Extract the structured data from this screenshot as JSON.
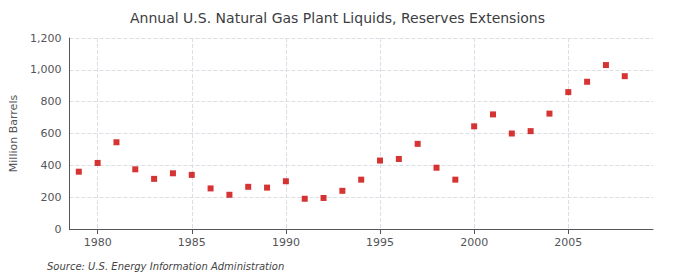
{
  "chart_data": {
    "type": "scatter",
    "title": "Annual U.S. Natural Gas Plant Liquids, Reserves Extensions",
    "ylabel": "Million Barrels",
    "source": "Source: U.S. Energy Information Administration",
    "x": [
      1979,
      1980,
      1981,
      1982,
      1983,
      1984,
      1985,
      1986,
      1987,
      1988,
      1989,
      1990,
      1991,
      1992,
      1993,
      1994,
      1995,
      1996,
      1997,
      1998,
      1999,
      2000,
      2001,
      2002,
      2003,
      2004,
      2005,
      2006,
      2007,
      2008
    ],
    "values": [
      360,
      415,
      545,
      375,
      315,
      350,
      340,
      255,
      215,
      265,
      260,
      300,
      190,
      195,
      240,
      310,
      430,
      440,
      535,
      385,
      310,
      645,
      720,
      600,
      615,
      725,
      860,
      925,
      1030,
      960
    ],
    "color": "#cc0000",
    "marker": "square",
    "xlim": [
      1978.5,
      2009.5
    ],
    "xticks": [
      1980,
      1985,
      1990,
      1995,
      2000,
      2005
    ],
    "ylim": [
      0,
      1200
    ],
    "yticks": [
      0,
      200,
      400,
      600,
      800,
      {
        "value": 1000,
        "label": "1,000"
      },
      {
        "value": 1200,
        "label": "1,200"
      }
    ],
    "grid": true
  }
}
